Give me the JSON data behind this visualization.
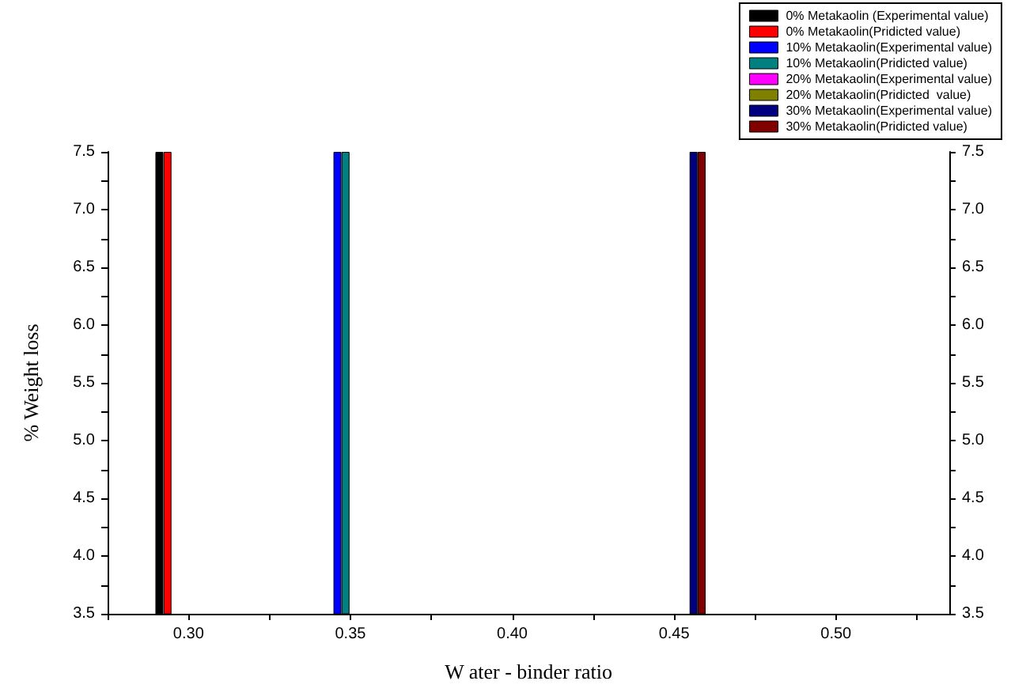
{
  "chart_data": {
    "type": "bar",
    "xlabel": "W ater - binder ratio",
    "ylabel": "% Weight loss",
    "xlim": [
      0.275,
      0.535
    ],
    "xticks": [
      {
        "value": 0.275,
        "label": null
      },
      {
        "value": 0.3,
        "label": "0.30"
      },
      {
        "value": 0.325,
        "label": null
      },
      {
        "value": 0.35,
        "label": "0.35"
      },
      {
        "value": 0.375,
        "label": null
      },
      {
        "value": 0.4,
        "label": "0.40"
      },
      {
        "value": 0.425,
        "label": null
      },
      {
        "value": 0.45,
        "label": "0.45"
      },
      {
        "value": 0.475,
        "label": null
      },
      {
        "value": 0.5,
        "label": "0.50"
      },
      {
        "value": 0.525,
        "label": null
      }
    ],
    "ylim": [
      3.5,
      7.5
    ],
    "yticks": [
      {
        "value": 3.5,
        "label": "3.5"
      },
      {
        "value": 3.75,
        "label": null
      },
      {
        "value": 4,
        "label": "4.0"
      },
      {
        "value": 4.25,
        "label": null
      },
      {
        "value": 4.5,
        "label": "4.5"
      },
      {
        "value": 4.75,
        "label": null
      },
      {
        "value": 5,
        "label": "5.0"
      },
      {
        "value": 5.25,
        "label": null
      },
      {
        "value": 5.5,
        "label": "5.5"
      },
      {
        "value": 5.75,
        "label": null
      },
      {
        "value": 6,
        "label": "6.0"
      },
      {
        "value": 6.25,
        "label": null
      },
      {
        "value": 6.5,
        "label": "6.5"
      },
      {
        "value": 6.75,
        "label": null
      },
      {
        "value": 7,
        "label": "7.0"
      },
      {
        "value": 7.25,
        "label": null
      },
      {
        "value": 7.5,
        "label": "7.5"
      }
    ],
    "y2lim": [
      3.5,
      7.5
    ],
    "y2ticks": [
      {
        "value": 3.5,
        "label": "3.5"
      },
      {
        "value": 3.75,
        "label": null
      },
      {
        "value": 4,
        "label": "4.0"
      },
      {
        "value": 4.25,
        "label": null
      },
      {
        "value": 4.5,
        "label": "4.5"
      },
      {
        "value": 4.75,
        "label": null
      },
      {
        "value": 5,
        "label": "5.0"
      },
      {
        "value": 5.25,
        "label": null
      },
      {
        "value": 5.5,
        "label": "5.5"
      },
      {
        "value": 5.75,
        "label": null
      },
      {
        "value": 6,
        "label": "6.0"
      },
      {
        "value": 6.25,
        "label": null
      },
      {
        "value": 6.5,
        "label": "6.5"
      },
      {
        "value": 6.75,
        "label": null
      },
      {
        "value": 7,
        "label": "7.0"
      },
      {
        "value": 7.25,
        "label": null
      },
      {
        "value": 7.5,
        "label": "7.5"
      }
    ],
    "grid": false,
    "legend": "top right",
    "series": [
      {
        "name": "0% Metakaolin (Experimental value)",
        "color": "#000000",
        "x": [
          0.291
        ],
        "values": [
          7.5
        ]
      },
      {
        "name": "0% Metakaolin(Pridicted value)",
        "color": "#ff0000",
        "x": [
          0.2935
        ],
        "values": [
          7.5
        ]
      },
      {
        "name": "10% Metakaolin(Experimental value)",
        "color": "#0000ff",
        "x": [
          0.346
        ],
        "values": [
          7.5
        ]
      },
      {
        "name": "10% Metakaolin(Pridicted value)",
        "color": "#008080",
        "x": [
          0.3485
        ],
        "values": [
          7.5
        ]
      },
      {
        "name": "20% Metakaolin(Experimental value)",
        "color": "#ff00ff",
        "x": [
          null
        ],
        "values": [
          null
        ]
      },
      {
        "name": "20% Metakaolin(Pridicted  value)",
        "color": "#808000",
        "x": [
          null
        ],
        "values": [
          null
        ]
      },
      {
        "name": "30% Metakaolin(Experimental value)",
        "color": "#000080",
        "x": [
          0.456
        ],
        "values": [
          7.5
        ]
      },
      {
        "name": "30% Metakaolin(Pridicted value)",
        "color": "#800000",
        "x": [
          0.4585
        ],
        "values": [
          7.5
        ]
      }
    ]
  }
}
